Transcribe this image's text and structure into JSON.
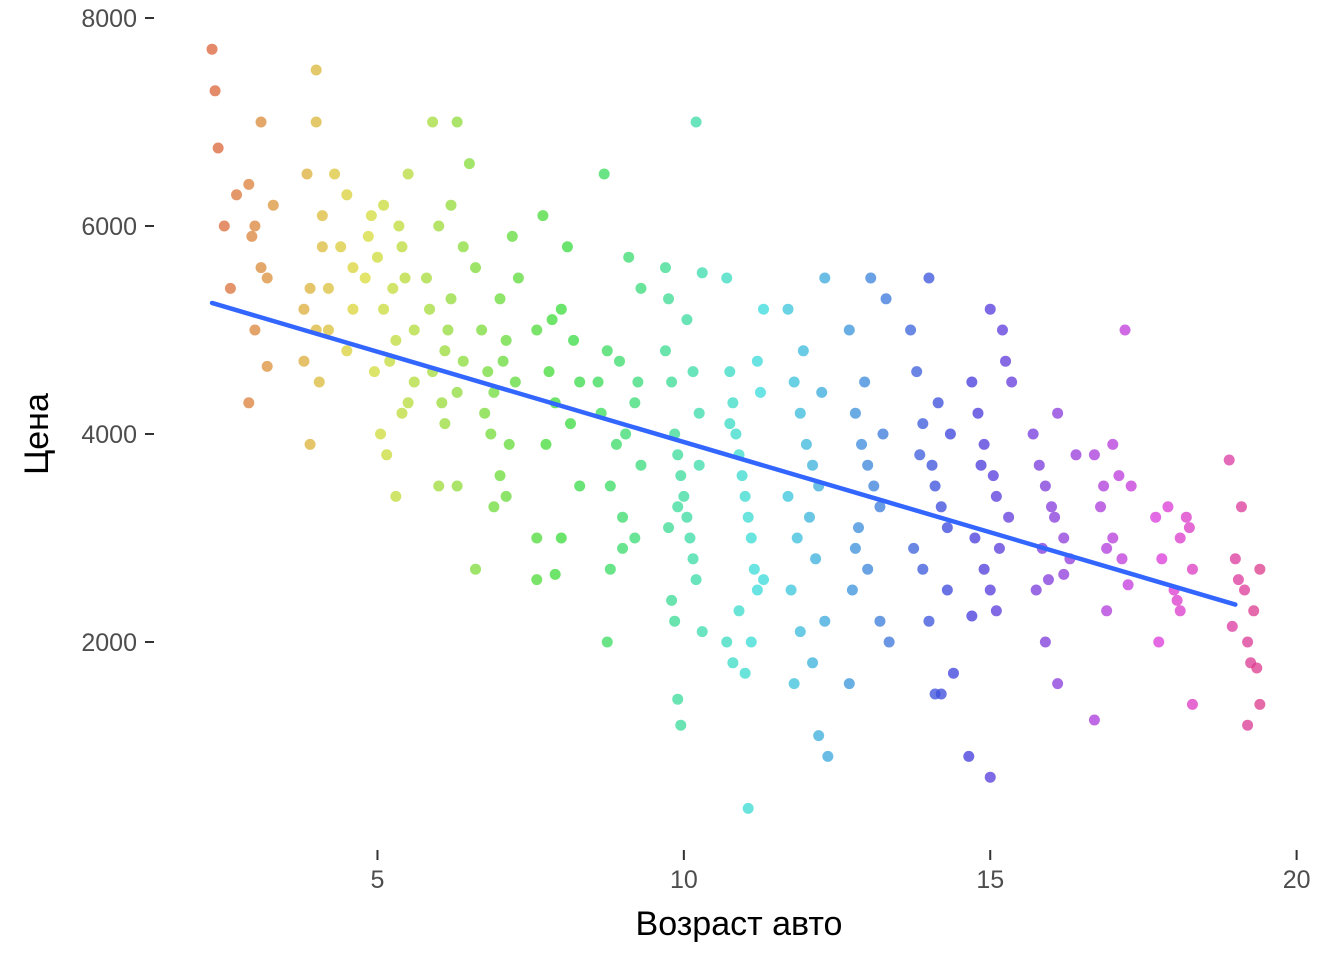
{
  "chart_data": {
    "type": "scatter",
    "title": "",
    "xlabel": "Возраст авто",
    "ylabel": "Цена",
    "xlim": [
      1.5,
      20.3
    ],
    "ylim": [
      0,
      8000
    ],
    "x_ticks": [
      5,
      10,
      15,
      20
    ],
    "x_tick_labels": [
      "5",
      "10",
      "15",
      "20"
    ],
    "y_ticks": [
      2000,
      4000,
      6000,
      8000
    ],
    "y_tick_labels": [
      "2000",
      "4000",
      "6000",
      "8000"
    ],
    "grid": false,
    "legend": false,
    "color_encoding": "hue by age year",
    "colors": {
      "trend_line": "#3366ff",
      "tick_text": "#4d4d4d",
      "tick_mark": "#333333",
      "background": "#ffffff"
    },
    "trend_line": {
      "type": "linear regression",
      "x": [
        2.3,
        19.0
      ],
      "y": [
        5260,
        2360
      ]
    },
    "points": [
      [
        2.3,
        7700
      ],
      [
        2.35,
        7300
      ],
      [
        2.4,
        6750
      ],
      [
        2.5,
        6000
      ],
      [
        2.6,
        5400
      ],
      [
        2.7,
        6300
      ],
      [
        2.9,
        6400
      ],
      [
        2.95,
        5900
      ],
      [
        3.0,
        6000
      ],
      [
        3.1,
        7000
      ],
      [
        3.2,
        5500
      ],
      [
        3.3,
        6200
      ],
      [
        3.2,
        4650
      ],
      [
        2.9,
        4300
      ],
      [
        3.0,
        5000
      ],
      [
        3.1,
        5600
      ],
      [
        3.8,
        5200
      ],
      [
        3.85,
        6500
      ],
      [
        3.9,
        3900
      ],
      [
        4.0,
        7500
      ],
      [
        4.0,
        7000
      ],
      [
        4.1,
        5800
      ],
      [
        4.2,
        5000
      ],
      [
        4.05,
        4500
      ],
      [
        4.3,
        6500
      ],
      [
        4.4,
        5800
      ],
      [
        4.5,
        6300
      ],
      [
        4.6,
        5600
      ],
      [
        4.5,
        4800
      ],
      [
        4.1,
        6100
      ],
      [
        3.8,
        4700
      ],
      [
        3.9,
        5400
      ],
      [
        4.6,
        5200
      ],
      [
        4.2,
        5400
      ],
      [
        4.0,
        5000
      ],
      [
        4.8,
        5500
      ],
      [
        4.9,
        6100
      ],
      [
        5.0,
        5700
      ],
      [
        5.1,
        5200
      ],
      [
        5.2,
        4700
      ],
      [
        5.3,
        4900
      ],
      [
        5.4,
        5800
      ],
      [
        5.5,
        6500
      ],
      [
        5.6,
        5000
      ],
      [
        5.05,
        4000
      ],
      [
        5.15,
        3800
      ],
      [
        5.3,
        3400
      ],
      [
        5.4,
        4200
      ],
      [
        4.95,
        4600
      ],
      [
        5.25,
        5400
      ],
      [
        5.5,
        4300
      ],
      [
        5.6,
        4500
      ],
      [
        4.85,
        5900
      ],
      [
        5.45,
        5500
      ],
      [
        5.1,
        6200
      ],
      [
        5.35,
        6000
      ],
      [
        5.8,
        5500
      ],
      [
        5.9,
        7000
      ],
      [
        6.0,
        6000
      ],
      [
        6.1,
        4800
      ],
      [
        6.2,
        5300
      ],
      [
        6.3,
        7000
      ],
      [
        6.2,
        6200
      ],
      [
        6.4,
        5800
      ],
      [
        6.5,
        6600
      ],
      [
        6.3,
        4400
      ],
      [
        6.1,
        4100
      ],
      [
        6.0,
        3500
      ],
      [
        6.3,
        3500
      ],
      [
        5.9,
        4600
      ],
      [
        6.15,
        5000
      ],
      [
        6.4,
        4700
      ],
      [
        5.85,
        5200
      ],
      [
        6.05,
        4300
      ],
      [
        6.6,
        5600
      ],
      [
        6.7,
        5000
      ],
      [
        6.8,
        4600
      ],
      [
        6.9,
        4400
      ],
      [
        7.0,
        5300
      ],
      [
        7.1,
        4900
      ],
      [
        7.2,
        5900
      ],
      [
        7.3,
        5500
      ],
      [
        7.0,
        3600
      ],
      [
        6.9,
        3300
      ],
      [
        7.1,
        3400
      ],
      [
        6.6,
        2700
      ],
      [
        6.75,
        4200
      ],
      [
        7.25,
        4500
      ],
      [
        6.85,
        4000
      ],
      [
        7.15,
        3900
      ],
      [
        7.05,
        4700
      ],
      [
        7.6,
        5000
      ],
      [
        7.7,
        6100
      ],
      [
        7.8,
        4600
      ],
      [
        7.9,
        4300
      ],
      [
        8.0,
        5200
      ],
      [
        8.1,
        5800
      ],
      [
        8.2,
        4900
      ],
      [
        8.3,
        4500
      ],
      [
        7.6,
        3000
      ],
      [
        7.6,
        2600
      ],
      [
        8.0,
        3000
      ],
      [
        7.9,
        2650
      ],
      [
        8.3,
        3500
      ],
      [
        7.75,
        3900
      ],
      [
        8.15,
        4100
      ],
      [
        7.85,
        5100
      ],
      [
        8.6,
        4500
      ],
      [
        8.7,
        6500
      ],
      [
        8.75,
        4800
      ],
      [
        8.8,
        3500
      ],
      [
        8.9,
        3900
      ],
      [
        9.0,
        3200
      ],
      [
        9.1,
        5700
      ],
      [
        9.2,
        4300
      ],
      [
        9.3,
        5400
      ],
      [
        8.75,
        2000
      ],
      [
        8.8,
        2700
      ],
      [
        9.0,
        2900
      ],
      [
        9.2,
        3000
      ],
      [
        9.3,
        3700
      ],
      [
        8.65,
        4200
      ],
      [
        9.05,
        4000
      ],
      [
        8.95,
        4700
      ],
      [
        9.25,
        4500
      ],
      [
        9.7,
        5600
      ],
      [
        9.75,
        5300
      ],
      [
        9.8,
        4500
      ],
      [
        9.85,
        4000
      ],
      [
        9.9,
        3800
      ],
      [
        9.95,
        3600
      ],
      [
        10.0,
        3400
      ],
      [
        10.05,
        3200
      ],
      [
        10.1,
        3000
      ],
      [
        10.15,
        2800
      ],
      [
        10.2,
        2600
      ],
      [
        9.8,
        2400
      ],
      [
        9.9,
        1450
      ],
      [
        9.95,
        1200
      ],
      [
        10.2,
        7000
      ],
      [
        10.3,
        5550
      ],
      [
        10.25,
        4200
      ],
      [
        10.15,
        4600
      ],
      [
        9.75,
        3100
      ],
      [
        10.3,
        2100
      ],
      [
        9.85,
        2200
      ],
      [
        10.05,
        5100
      ],
      [
        9.7,
        4800
      ],
      [
        10.25,
        3700
      ],
      [
        9.9,
        3300
      ],
      [
        10.7,
        5500
      ],
      [
        10.75,
        4600
      ],
      [
        10.8,
        4300
      ],
      [
        10.85,
        4000
      ],
      [
        10.9,
        3800
      ],
      [
        10.95,
        3600
      ],
      [
        11.0,
        3400
      ],
      [
        11.05,
        3200
      ],
      [
        11.1,
        3000
      ],
      [
        11.15,
        2700
      ],
      [
        11.2,
        2500
      ],
      [
        10.8,
        1800
      ],
      [
        10.7,
        2000
      ],
      [
        11.0,
        1700
      ],
      [
        11.1,
        2000
      ],
      [
        11.05,
        400
      ],
      [
        11.3,
        5200
      ],
      [
        11.2,
        4700
      ],
      [
        10.9,
        2300
      ],
      [
        11.3,
        2600
      ],
      [
        10.75,
        4100
      ],
      [
        11.25,
        4400
      ],
      [
        11.7,
        5200
      ],
      [
        11.8,
        4500
      ],
      [
        11.9,
        4200
      ],
      [
        12.0,
        3900
      ],
      [
        12.1,
        3700
      ],
      [
        12.2,
        3500
      ],
      [
        12.3,
        5500
      ],
      [
        12.05,
        3200
      ],
      [
        11.85,
        3000
      ],
      [
        12.15,
        2800
      ],
      [
        11.75,
        2500
      ],
      [
        11.8,
        1600
      ],
      [
        12.1,
        1800
      ],
      [
        12.2,
        1100
      ],
      [
        12.35,
        900
      ],
      [
        11.9,
        2100
      ],
      [
        12.3,
        2200
      ],
      [
        11.95,
        4800
      ],
      [
        12.25,
        4400
      ],
      [
        11.7,
        3400
      ],
      [
        12.7,
        5000
      ],
      [
        12.8,
        4200
      ],
      [
        12.9,
        3900
      ],
      [
        13.0,
        3700
      ],
      [
        13.05,
        5500
      ],
      [
        13.1,
        3500
      ],
      [
        13.2,
        3300
      ],
      [
        13.3,
        5300
      ],
      [
        12.8,
        2900
      ],
      [
        13.0,
        2700
      ],
      [
        12.75,
        2500
      ],
      [
        13.2,
        2200
      ],
      [
        12.7,
        1600
      ],
      [
        13.35,
        2000
      ],
      [
        12.95,
        4500
      ],
      [
        13.25,
        4000
      ],
      [
        12.85,
        3100
      ],
      [
        13.7,
        5000
      ],
      [
        13.8,
        4600
      ],
      [
        13.9,
        4100
      ],
      [
        14.0,
        5500
      ],
      [
        14.05,
        3700
      ],
      [
        14.1,
        3500
      ],
      [
        14.2,
        3300
      ],
      [
        14.3,
        3100
      ],
      [
        13.75,
        2900
      ],
      [
        13.9,
        2700
      ],
      [
        14.0,
        2200
      ],
      [
        14.1,
        1500
      ],
      [
        14.2,
        1500
      ],
      [
        14.4,
        1700
      ],
      [
        14.3,
        2500
      ],
      [
        13.85,
        3800
      ],
      [
        14.15,
        4300
      ],
      [
        14.35,
        4000
      ],
      [
        14.7,
        4500
      ],
      [
        14.8,
        4200
      ],
      [
        14.9,
        3900
      ],
      [
        15.0,
        5200
      ],
      [
        15.05,
        3600
      ],
      [
        15.1,
        3400
      ],
      [
        15.2,
        5000
      ],
      [
        15.3,
        3200
      ],
      [
        14.75,
        3000
      ],
      [
        14.9,
        2700
      ],
      [
        15.0,
        2500
      ],
      [
        15.1,
        2300
      ],
      [
        14.65,
        900
      ],
      [
        15.0,
        700
      ],
      [
        14.7,
        2250
      ],
      [
        15.25,
        4700
      ],
      [
        15.35,
        4500
      ],
      [
        14.85,
        3700
      ],
      [
        15.15,
        2900
      ],
      [
        15.7,
        4000
      ],
      [
        15.8,
        3700
      ],
      [
        15.9,
        3500
      ],
      [
        16.0,
        3300
      ],
      [
        16.1,
        4200
      ],
      [
        16.2,
        3000
      ],
      [
        16.3,
        2800
      ],
      [
        16.4,
        3800
      ],
      [
        15.75,
        2500
      ],
      [
        15.9,
        2000
      ],
      [
        16.1,
        1600
      ],
      [
        16.2,
        2650
      ],
      [
        15.85,
        2900
      ],
      [
        16.05,
        3200
      ],
      [
        15.95,
        2600
      ],
      [
        16.7,
        3800
      ],
      [
        16.8,
        3300
      ],
      [
        16.9,
        2900
      ],
      [
        17.0,
        3900
      ],
      [
        17.1,
        3600
      ],
      [
        17.2,
        5000
      ],
      [
        17.3,
        3500
      ],
      [
        17.25,
        2550
      ],
      [
        16.7,
        1250
      ],
      [
        16.9,
        2300
      ],
      [
        17.0,
        3000
      ],
      [
        16.85,
        3500
      ],
      [
        17.15,
        2800
      ],
      [
        17.7,
        3200
      ],
      [
        17.8,
        2800
      ],
      [
        17.9,
        3300
      ],
      [
        18.0,
        2500
      ],
      [
        18.1,
        3000
      ],
      [
        18.2,
        3200
      ],
      [
        18.3,
        2700
      ],
      [
        17.75,
        2000
      ],
      [
        18.1,
        2300
      ],
      [
        18.3,
        1400
      ],
      [
        18.05,
        2400
      ],
      [
        18.25,
        3100
      ],
      [
        18.9,
        3750
      ],
      [
        19.0,
        2800
      ],
      [
        19.1,
        3300
      ],
      [
        19.15,
        2500
      ],
      [
        19.2,
        2000
      ],
      [
        19.25,
        1800
      ],
      [
        19.3,
        2300
      ],
      [
        19.4,
        2700
      ],
      [
        19.4,
        1400
      ],
      [
        19.2,
        1200
      ],
      [
        19.35,
        1750
      ],
      [
        18.95,
        2150
      ],
      [
        19.05,
        2600
      ]
    ]
  }
}
